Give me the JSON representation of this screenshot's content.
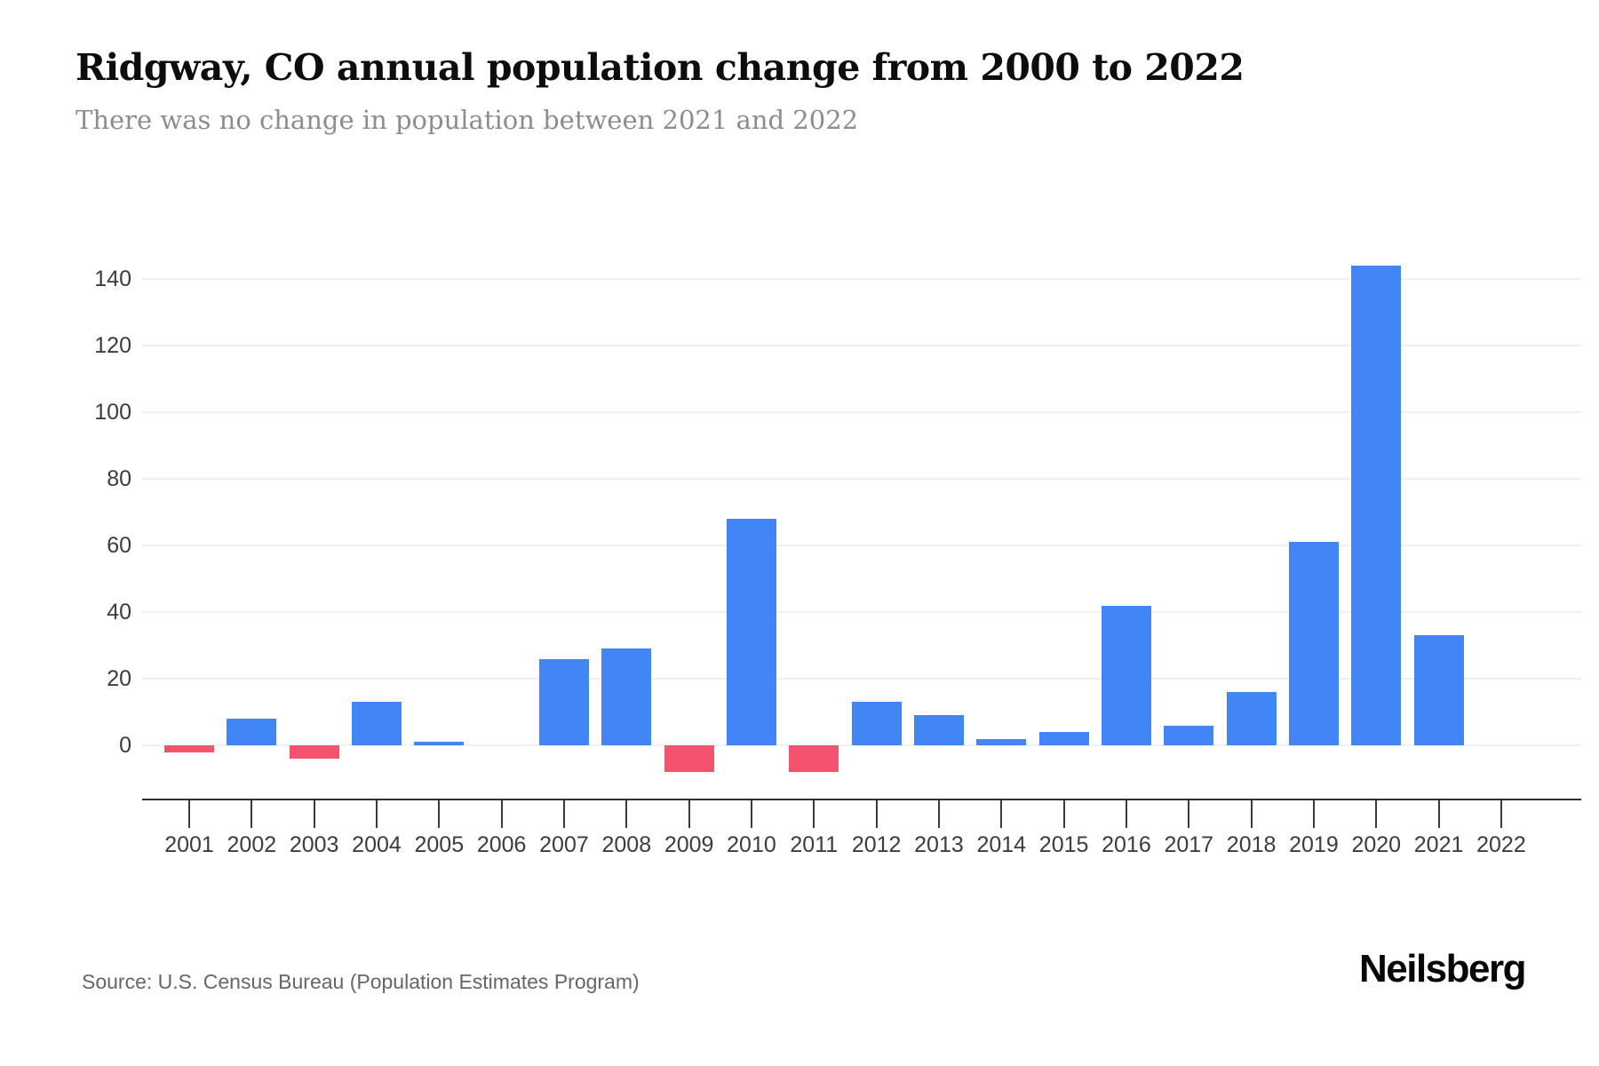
{
  "header": {
    "title": "Ridgway, CO annual population change from 2000 to 2022",
    "subtitle": "There was no change in population between 2021 and 2022"
  },
  "chart_data": {
    "type": "bar",
    "title": "Ridgway, CO annual population change from 2000 to 2022",
    "subtitle": "There was no change in population between 2021 and 2022",
    "categories": [
      "2001",
      "2002",
      "2003",
      "2004",
      "2005",
      "2006",
      "2007",
      "2008",
      "2009",
      "2010",
      "2011",
      "2012",
      "2013",
      "2014",
      "2015",
      "2016",
      "2017",
      "2018",
      "2019",
      "2020",
      "2021",
      "2022"
    ],
    "values": [
      -2,
      8,
      -4,
      13,
      1,
      0,
      26,
      29,
      -8,
      68,
      -8,
      13,
      9,
      2,
      4,
      42,
      6,
      16,
      61,
      144,
      33,
      0
    ],
    "xlabel": "",
    "ylabel": "",
    "yticks": [
      0,
      20,
      40,
      60,
      80,
      100,
      120,
      140
    ],
    "ylim": [
      -16,
      150
    ],
    "grid": true,
    "legend": false,
    "colors": {
      "positive_bar": "#4285F4",
      "negative_bar": "#F4536E",
      "gridline": "#F0F0F0",
      "axis": "#2F2F2F",
      "tick_label": "#3C3C3C"
    }
  },
  "footer": {
    "source": "Source: U.S. Census Bureau (Population Estimates Program)",
    "logo": "Neilsberg"
  }
}
